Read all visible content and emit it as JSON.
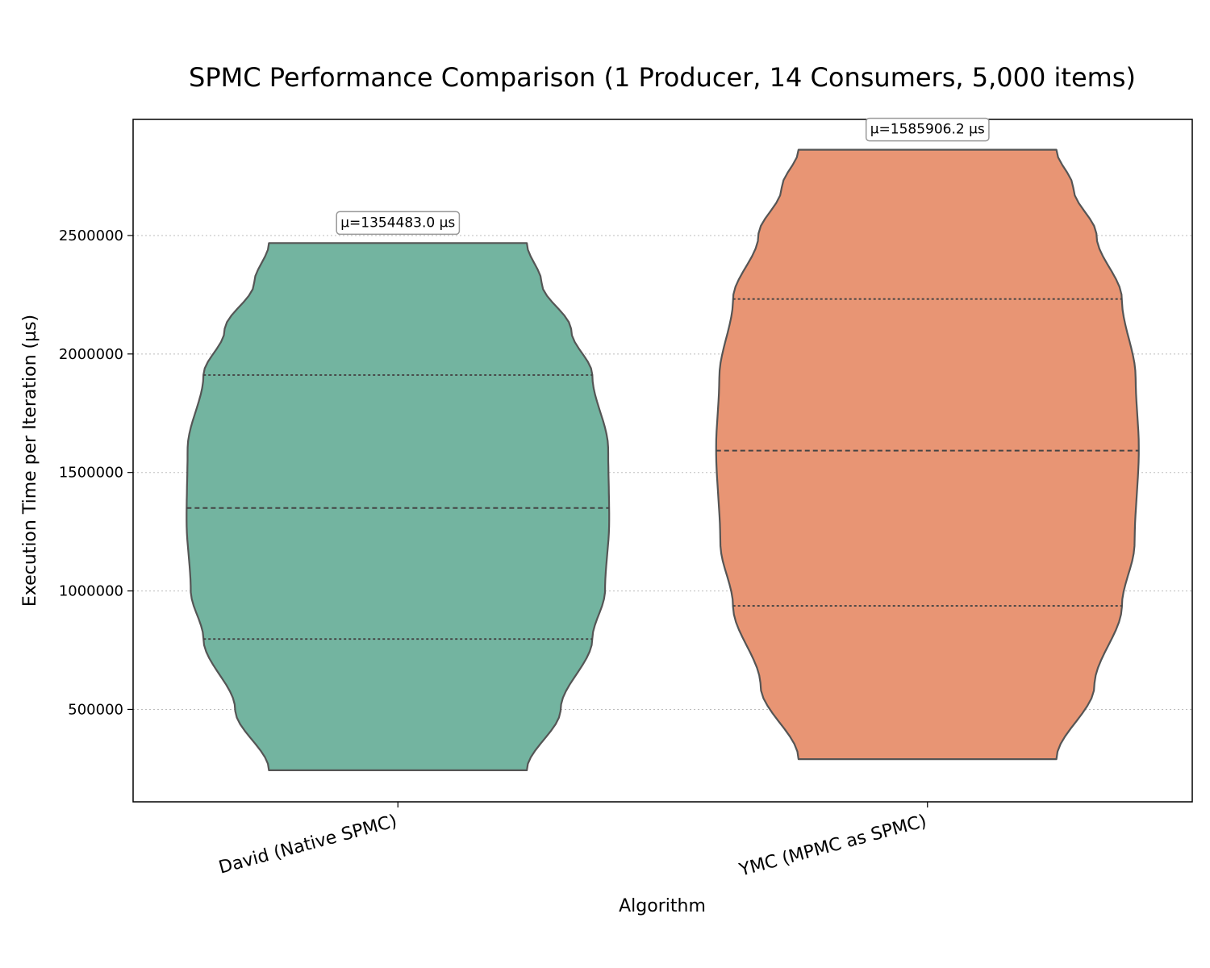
{
  "chart_data": {
    "type": "violin",
    "title": "SPMC Performance Comparison (1 Producer, 14 Consumers, 5,000 items)",
    "xlabel": "Algorithm",
    "ylabel": "Execution Time per Iteration (µs)",
    "ylim": [
      110000,
      2990000
    ],
    "yticks": [
      500000,
      1000000,
      1500000,
      2000000,
      2500000
    ],
    "grid": "y-dotted",
    "categories": [
      "David (Native SPMC)",
      "YMC (MPMC as SPMC)"
    ],
    "series": [
      {
        "category": "David (Native SPMC)",
        "color": "#73b4a0",
        "min": 243000,
        "max": 2468000,
        "q1": 797000,
        "median": 1350000,
        "q3": 1911000,
        "mean": 1354483.0,
        "mean_label": "µ=1354483.0 µs",
        "density_profile": [
          [
            243000,
            0.61
          ],
          [
            500000,
            0.77
          ],
          [
            797000,
            0.92
          ],
          [
            1000000,
            0.98
          ],
          [
            1300000,
            1.0
          ],
          [
            1600000,
            0.995
          ],
          [
            1911000,
            0.92
          ],
          [
            2100000,
            0.82
          ],
          [
            2300000,
            0.68
          ],
          [
            2468000,
            0.61
          ]
        ]
      },
      {
        "category": "YMC (MPMC as SPMC)",
        "color": "#e89574",
        "min": 290000,
        "max": 2862000,
        "q1": 937000,
        "median": 1592000,
        "q3": 2232000,
        "mean": 1585906.2,
        "mean_label": "µ=1585906.2 µs",
        "density_profile": [
          [
            290000,
            0.61
          ],
          [
            600000,
            0.79
          ],
          [
            937000,
            0.92
          ],
          [
            1200000,
            0.98
          ],
          [
            1600000,
            1.0
          ],
          [
            1900000,
            0.985
          ],
          [
            2232000,
            0.92
          ],
          [
            2500000,
            0.8
          ],
          [
            2700000,
            0.69
          ],
          [
            2862000,
            0.61
          ]
        ]
      }
    ]
  }
}
